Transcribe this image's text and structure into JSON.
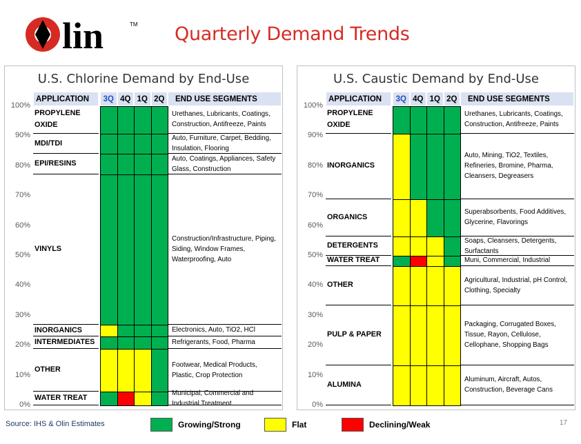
{
  "slide": {
    "title": "Quarterly Demand Trends",
    "logo_text": "Olin",
    "logo_tm": "TM",
    "source": "Source: IHS & Olin Estimates",
    "page_number": "17"
  },
  "colors": {
    "growing": "#00b050",
    "flat": "#ffff00",
    "declining": "#ff0000",
    "header_bg": "#d9e1f2",
    "title": "#d62b24"
  },
  "legend": [
    {
      "label": "Growing/Strong",
      "status": "G"
    },
    {
      "label": "Flat",
      "status": "F"
    },
    {
      "label": "Declining/Weak",
      "status": "D"
    }
  ],
  "chart_data": [
    {
      "type": "table",
      "title": "U.S. Chlorine Demand by End-Use",
      "headers": {
        "application": "APPLICATION",
        "quarters": [
          "3Q",
          "4Q",
          "1Q",
          "2Q"
        ],
        "segments": "END USE SEGMENTS"
      },
      "y_ticks": [
        "100%",
        "90%",
        "80%",
        "70%",
        "60%",
        "50%",
        "40%",
        "30%",
        "20%",
        "10%",
        "0%"
      ],
      "rows": [
        {
          "application": "PROPYLENE OXIDE",
          "segments": "Urethanes, Lubricants, Coatings, Construction, Antifreeze, Paints",
          "share_from": 90.8,
          "share_to": 100,
          "status": [
            "G",
            "G",
            "G",
            "G"
          ]
        },
        {
          "application": "MDI/TDI",
          "segments": "Auto, Furniture, Carpet, Bedding, Insulation, Flooring",
          "share_from": 84.0,
          "share_to": 90.8,
          "status": [
            "G",
            "G",
            "G",
            "G"
          ]
        },
        {
          "application": "EPI/RESINS",
          "segments": "Auto, Coatings, Appliances, Safety Glass, Construction",
          "share_from": 77.2,
          "share_to": 84.0,
          "status": [
            "G",
            "G",
            "G",
            "G"
          ]
        },
        {
          "application": "VINYLS",
          "segments": "Construction/Infrastructure, Piping, Siding, Window Frames, Waterproofing, Auto",
          "share_from": 27.0,
          "share_to": 77.2,
          "status": [
            "G",
            "G",
            "G",
            "G"
          ]
        },
        {
          "application": "INORGANICS",
          "segments": "Electronics, Auto, TiO2, HCl",
          "share_from": 23.0,
          "share_to": 27.0,
          "status": [
            "F",
            "G",
            "G",
            "G"
          ]
        },
        {
          "application": "INTERMEDIATES",
          "segments": "Refrigerants, Food, Pharma",
          "share_from": 18.8,
          "share_to": 23.0,
          "status": [
            "G",
            "G",
            "G",
            "G"
          ]
        },
        {
          "application": "OTHER",
          "segments": "Footwear, Medical Products, Plastic, Crop Protection",
          "share_from": 4.6,
          "share_to": 18.8,
          "status": [
            "F",
            "F",
            "F",
            "G"
          ]
        },
        {
          "application": "WATER TREAT",
          "segments": "Municipal, Commercial and Industrial Treatment",
          "share_from": 0,
          "share_to": 4.6,
          "status": [
            "G",
            "D",
            "F",
            "G"
          ]
        }
      ]
    },
    {
      "type": "table",
      "title": "U.S. Caustic Demand by End-Use",
      "headers": {
        "application": "APPLICATION",
        "quarters": [
          "3Q",
          "4Q",
          "1Q",
          "2Q"
        ],
        "segments": "END USE SEGMENTS"
      },
      "y_ticks": [
        "100%",
        "90%",
        "80%",
        "70%",
        "60%",
        "50%",
        "40%",
        "30%",
        "20%",
        "10%",
        "0%"
      ],
      "rows": [
        {
          "application": "PROPYLENE OXIDE",
          "segments": "Urethanes, Lubricants, Coatings, Construction, Antifreeze, Paints",
          "share_from": 90.8,
          "share_to": 100,
          "status": [
            "G",
            "G",
            "G",
            "G"
          ]
        },
        {
          "application": "INORGANICS",
          "segments": "Auto, Mining, TiO2, Textiles, Refineries, Bromine, Pharma, Cleansers, Degreasers",
          "share_from": 69.0,
          "share_to": 90.8,
          "status": [
            "F",
            "G",
            "G",
            "G"
          ]
        },
        {
          "application": "ORGANICS",
          "segments": "Superabsorbents, Food Additives, Glycerine, Flavorings",
          "share_from": 56.4,
          "share_to": 69.0,
          "status": [
            "F",
            "F",
            "G",
            "G"
          ]
        },
        {
          "application": "DETERGENTS",
          "segments": "Soaps, Cleansers, Detergents, Surfactants",
          "share_from": 50.0,
          "share_to": 56.4,
          "status": [
            "F",
            "F",
            "F",
            "G"
          ]
        },
        {
          "application": "WATER TREAT",
          "segments": "Muni, Commercial, Industrial",
          "share_from": 46.6,
          "share_to": 50.0,
          "status": [
            "G",
            "D",
            "F",
            "G"
          ]
        },
        {
          "application": "OTHER",
          "segments": "Agricultural, Industrial, pH Control, Clothing, Specialty",
          "share_from": 33.5,
          "share_to": 46.6,
          "status": [
            "F",
            "F",
            "F",
            "F"
          ]
        },
        {
          "application": "PULP & PAPER",
          "segments": "Packaging, Corrugated Boxes, Tissue, Rayon, Cellulose, Cellophane, Shopping Bags",
          "share_from": 13.4,
          "share_to": 33.5,
          "status": [
            "F",
            "F",
            "F",
            "F"
          ]
        },
        {
          "application": "ALUMINA",
          "segments": "Aluminum, Aircraft, Autos, Construction, Beverage Cans",
          "share_from": 0,
          "share_to": 13.4,
          "status": [
            "F",
            "F",
            "F",
            "F"
          ]
        }
      ]
    }
  ]
}
